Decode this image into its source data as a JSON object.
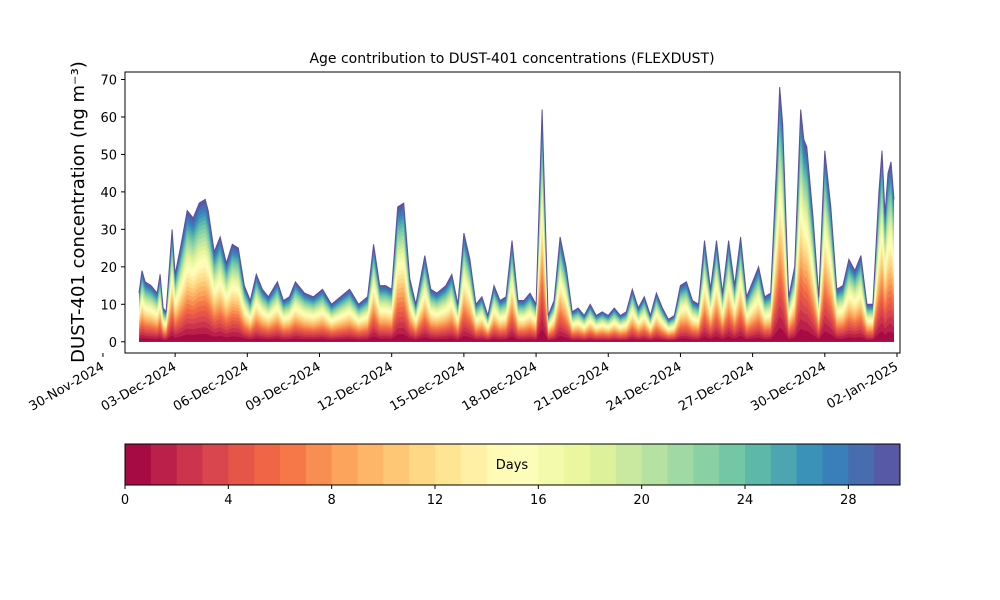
{
  "chart_data": [
    {
      "type": "area",
      "title": "Age contribution to DUST-401 concentrations (FLEXDUST)",
      "ylabel": "DUST-401 concentration (ng m⁻³)",
      "xlabel": "",
      "ylim": [
        -3,
        72
      ],
      "yticks": [
        0,
        10,
        20,
        30,
        40,
        50,
        60,
        70
      ],
      "xlim": [
        "2024-11-30T22:00",
        "2025-01-02T03:00"
      ],
      "xticks": [
        "30-Nov-2024",
        "03-Dec-2024",
        "06-Dec-2024",
        "09-Dec-2024",
        "12-Dec-2024",
        "15-Dec-2024",
        "18-Dec-2024",
        "21-Dec-2024",
        "24-Dec-2024",
        "27-Dec-2024",
        "30-Dec-2024",
        "02-Jan-2025"
      ],
      "xtick_dates": [
        "2024-11-30",
        "2024-12-03",
        "2024-12-06",
        "2024-12-09",
        "2024-12-12",
        "2024-12-15",
        "2024-12-18",
        "2024-12-21",
        "2024-12-24",
        "2024-12-27",
        "2024-12-30",
        "2025-01-02"
      ],
      "stacked": true,
      "stack_variable": "age",
      "age_bins": 30,
      "colormap": "Spectral",
      "total": {
        "x": [
          "2024-12-01T12:00",
          "2024-12-01T15:00",
          "2024-12-01T18:00",
          "2024-12-02T00:00",
          "2024-12-02T06:00",
          "2024-12-02T09:00",
          "2024-12-02T12:00",
          "2024-12-02T15:00",
          "2024-12-02T21:00",
          "2024-12-03T00:00",
          "2024-12-03T06:00",
          "2024-12-03T12:00",
          "2024-12-03T18:00",
          "2024-12-04T00:00",
          "2024-12-04T06:00",
          "2024-12-04T09:00",
          "2024-12-04T15:00",
          "2024-12-04T21:00",
          "2024-12-05T03:00",
          "2024-12-05T09:00",
          "2024-12-05T15:00",
          "2024-12-05T21:00",
          "2024-12-06T03:00",
          "2024-12-06T09:00",
          "2024-12-06T15:00",
          "2024-12-06T21:00",
          "2024-12-07T06:00",
          "2024-12-07T12:00",
          "2024-12-07T18:00",
          "2024-12-08T00:00",
          "2024-12-08T09:00",
          "2024-12-08T18:00",
          "2024-12-09T03:00",
          "2024-12-09T12:00",
          "2024-12-09T21:00",
          "2024-12-10T06:00",
          "2024-12-10T15:00",
          "2024-12-11T00:00",
          "2024-12-11T06:00",
          "2024-12-11T12:00",
          "2024-12-11T18:00",
          "2024-12-12T00:00",
          "2024-12-12T06:00",
          "2024-12-12T12:00",
          "2024-12-12T18:00",
          "2024-12-13T00:00",
          "2024-12-13T09:00",
          "2024-12-13T15:00",
          "2024-12-13T21:00",
          "2024-12-14T06:00",
          "2024-12-14T12:00",
          "2024-12-14T18:00",
          "2024-12-15T00:00",
          "2024-12-15T06:00",
          "2024-12-15T12:00",
          "2024-12-15T18:00",
          "2024-12-16T00:00",
          "2024-12-16T06:00",
          "2024-12-16T12:00",
          "2024-12-16T18:00",
          "2024-12-17T00:00",
          "2024-12-17T06:00",
          "2024-12-17T12:00",
          "2024-12-17T18:00",
          "2024-12-18T00:00",
          "2024-12-18T06:00",
          "2024-12-18T12:00",
          "2024-12-18T18:00",
          "2024-12-19T00:00",
          "2024-12-19T06:00",
          "2024-12-19T12:00",
          "2024-12-19T18:00",
          "2024-12-20T00:00",
          "2024-12-20T06:00",
          "2024-12-20T12:00",
          "2024-12-20T18:00",
          "2024-12-21T00:00",
          "2024-12-21T06:00",
          "2024-12-21T12:00",
          "2024-12-21T18:00",
          "2024-12-22T00:00",
          "2024-12-22T06:00",
          "2024-12-22T12:00",
          "2024-12-22T18:00",
          "2024-12-23T00:00",
          "2024-12-23T06:00",
          "2024-12-23T12:00",
          "2024-12-23T18:00",
          "2024-12-24T00:00",
          "2024-12-24T06:00",
          "2024-12-24T12:00",
          "2024-12-24T18:00",
          "2024-12-25T00:00",
          "2024-12-25T06:00",
          "2024-12-25T12:00",
          "2024-12-25T18:00",
          "2024-12-26T00:00",
          "2024-12-26T06:00",
          "2024-12-26T12:00",
          "2024-12-26T18:00",
          "2024-12-27T00:00",
          "2024-12-27T06:00",
          "2024-12-27T12:00",
          "2024-12-27T18:00",
          "2024-12-28T00:00",
          "2024-12-28T03:00",
          "2024-12-28T06:00",
          "2024-12-28T12:00",
          "2024-12-28T18:00",
          "2024-12-29T00:00",
          "2024-12-29T03:00",
          "2024-12-29T06:00",
          "2024-12-29T12:00",
          "2024-12-29T18:00",
          "2024-12-30T00:00",
          "2024-12-30T06:00",
          "2024-12-30T12:00",
          "2024-12-30T18:00",
          "2024-12-31T00:00",
          "2024-12-31T06:00",
          "2024-12-31T12:00",
          "2024-12-31T18:00",
          "2025-01-01T00:00",
          "2025-01-01T06:00",
          "2025-01-01T09:00",
          "2025-01-01T12:00",
          "2025-01-01T15:00",
          "2025-01-01T18:00",
          "2025-01-01T21:00"
        ],
        "y": [
          13,
          19,
          16,
          15,
          13,
          18,
          9,
          8,
          30,
          18,
          26,
          35,
          33,
          37,
          38,
          35,
          24,
          28,
          21,
          26,
          25,
          15,
          11,
          18,
          14,
          12,
          16,
          11,
          12,
          16,
          13,
          12,
          14,
          10,
          12,
          14,
          10,
          12,
          26,
          15,
          15,
          14,
          36,
          37,
          17,
          10,
          23,
          14,
          13,
          15,
          18,
          10,
          29,
          22,
          10,
          12,
          7,
          15,
          11,
          12,
          27,
          11,
          11,
          13,
          10,
          62,
          7,
          11,
          28,
          20,
          8,
          9,
          7,
          10,
          7,
          8,
          7,
          9,
          7,
          8,
          14,
          9,
          12,
          7,
          13,
          9,
          6,
          7,
          15,
          16,
          11,
          10,
          27,
          14,
          27,
          13,
          27,
          15,
          28,
          12,
          16,
          20,
          12,
          13,
          48,
          68,
          58,
          12,
          20,
          62,
          54,
          52,
          34,
          12,
          51,
          36,
          14,
          15,
          22,
          19,
          23,
          10,
          10,
          40,
          51,
          34,
          45,
          48,
          38
        ]
      },
      "colorbar": {
        "label": "Days",
        "ticks": [
          0,
          4,
          8,
          12,
          16,
          20,
          24,
          28
        ],
        "range": [
          0,
          30
        ]
      }
    }
  ]
}
